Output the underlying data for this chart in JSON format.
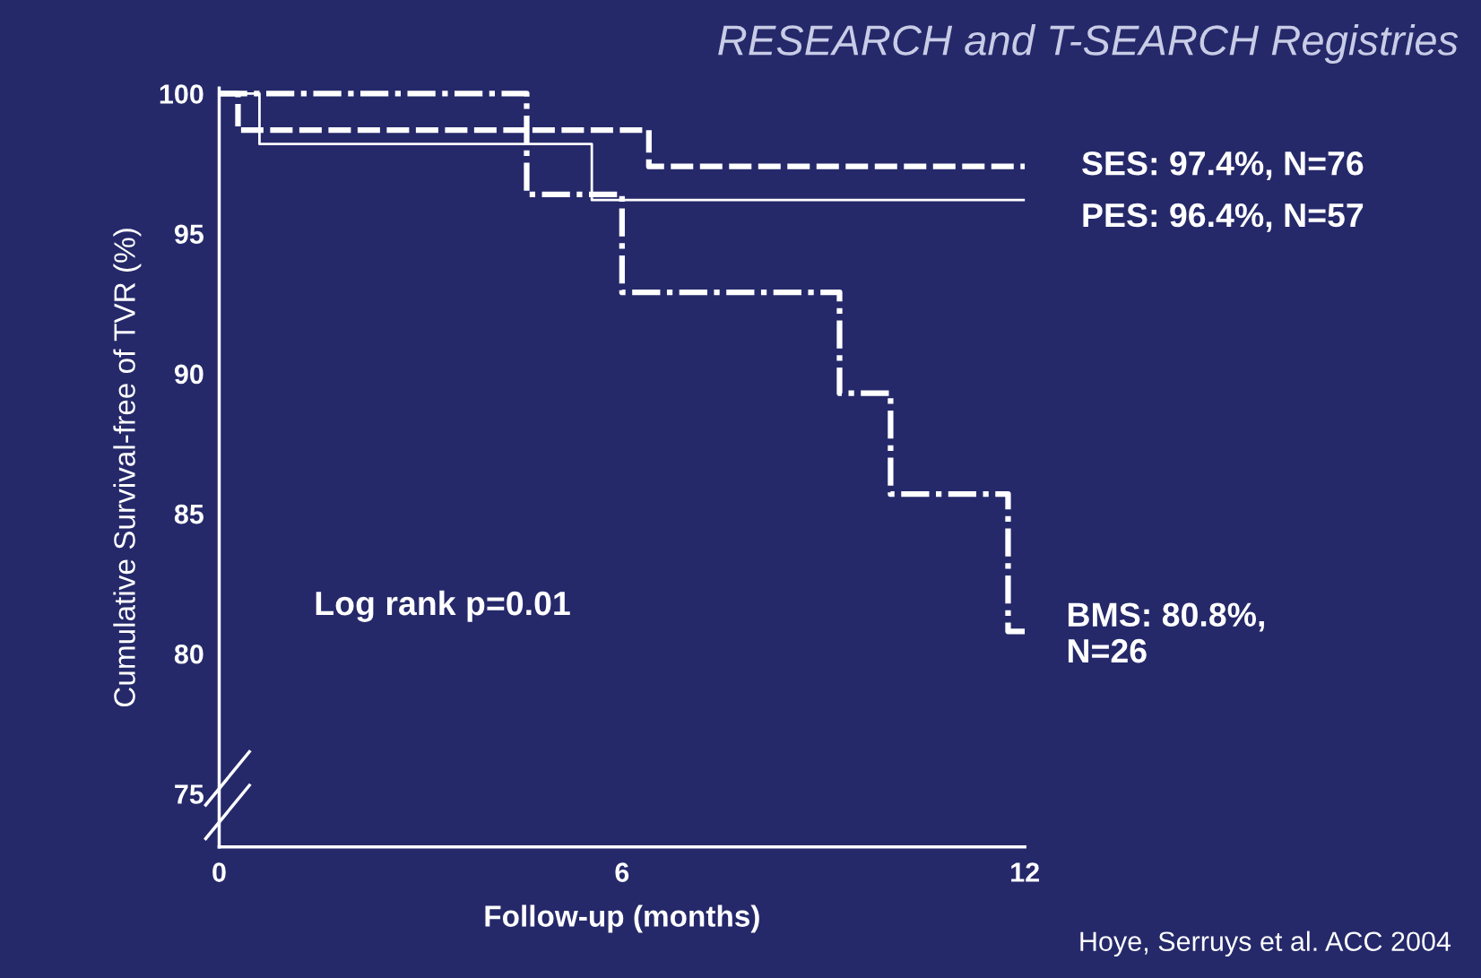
{
  "chart_data": {
    "type": "step",
    "title": "RESEARCH and T-SEARCH Registries",
    "xlabel": "Follow-up (months)",
    "ylabel": "Cumulative Survival-free of TVR (%)",
    "xlim": [
      0,
      12
    ],
    "xticks": [
      0,
      6,
      12
    ],
    "ylim": [
      73.1,
      100.2
    ],
    "yticks": [
      75,
      80,
      85,
      90,
      95,
      100
    ],
    "grid": false,
    "legend": false,
    "marker": "none",
    "series": [
      {
        "color": "#ffffff",
        "line_style": "dashed",
        "x": [
          0,
          0.28,
          6.4,
          12
        ],
        "values": [
          100,
          98.7,
          97.4,
          97.4
        ]
      },
      {
        "color": "#ffffff",
        "line_style": "solid",
        "x": [
          0,
          0.6,
          5.55,
          12
        ],
        "values": [
          100,
          98.2,
          96.2,
          96.2
        ]
      },
      {
        "color": "#ffffff",
        "line_style": "dashdot",
        "x": [
          0,
          4.58,
          6.0,
          9.24,
          10.0,
          11.75,
          12
        ],
        "values": [
          100,
          96.4,
          92.9,
          89.3,
          85.7,
          80.8,
          80.8
        ]
      }
    ],
    "annotations": [
      "SES: 97.4%, N=76",
      "PES: 96.4%, N=57",
      "BMS: 80.8%,\nN=26",
      "Log rank p=0.01",
      "Hoye, Serruys et al. ACC 2004"
    ]
  }
}
